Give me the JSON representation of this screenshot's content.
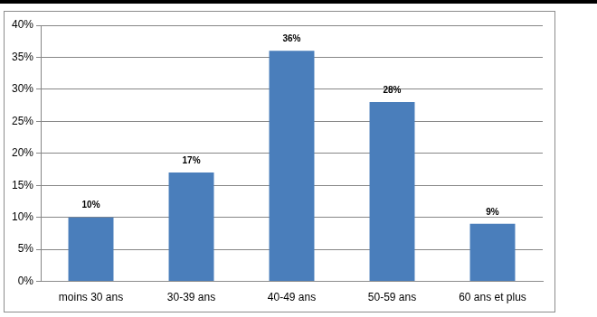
{
  "chart_data": {
    "type": "bar",
    "categories": [
      "moins 30 ans",
      "30-39 ans",
      "40-49 ans",
      "50-59 ans",
      "60 ans et plus"
    ],
    "values": [
      10,
      17,
      36,
      28,
      9
    ],
    "value_labels": [
      "10%",
      "17%",
      "36%",
      "28%",
      "9%"
    ],
    "data_labels": true,
    "color": "#4a7ebb",
    "ylim": [
      0,
      40
    ],
    "yticks": [
      {
        "value": 0,
        "label": "0%"
      },
      {
        "value": 5,
        "label": "5%"
      },
      {
        "value": 10,
        "label": "10%"
      },
      {
        "value": 15,
        "label": "15%"
      },
      {
        "value": 20,
        "label": "20%"
      },
      {
        "value": 25,
        "label": "25%"
      },
      {
        "value": 30,
        "label": "30%"
      },
      {
        "value": 35,
        "label": "35%"
      },
      {
        "value": 40,
        "label": "40%"
      }
    ],
    "grid": true
  }
}
